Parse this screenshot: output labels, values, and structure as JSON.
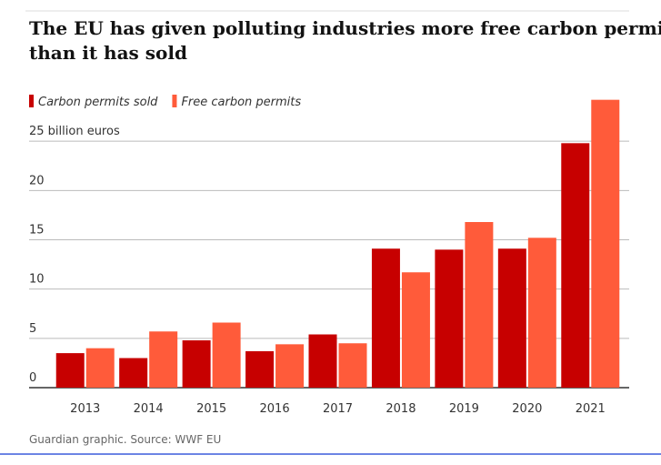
{
  "chart_data": {
    "type": "bar",
    "title": "The EU has given polluting industries more free carbon permits than it has sold",
    "categories": [
      "2013",
      "2014",
      "2015",
      "2016",
      "2017",
      "2018",
      "2019",
      "2020",
      "2021"
    ],
    "series": [
      {
        "name": "Carbon permits sold",
        "color": "#c70000",
        "values": [
          3.5,
          3.0,
          4.8,
          3.7,
          5.4,
          14.1,
          14.0,
          14.1,
          24.8
        ]
      },
      {
        "name": "Free carbon permits",
        "color": "#ff5b3a",
        "values": [
          4.0,
          5.7,
          6.6,
          4.4,
          4.5,
          11.7,
          16.8,
          15.2,
          29.2
        ]
      }
    ],
    "ylim": [
      0,
      30
    ],
    "yticks": [
      0,
      5,
      10,
      15,
      20,
      {
        "value": 25,
        "label": "25 billion euros"
      }
    ],
    "grid": true,
    "legend": "top-left",
    "source": "Guardian graphic. Source: WWF EU"
  }
}
